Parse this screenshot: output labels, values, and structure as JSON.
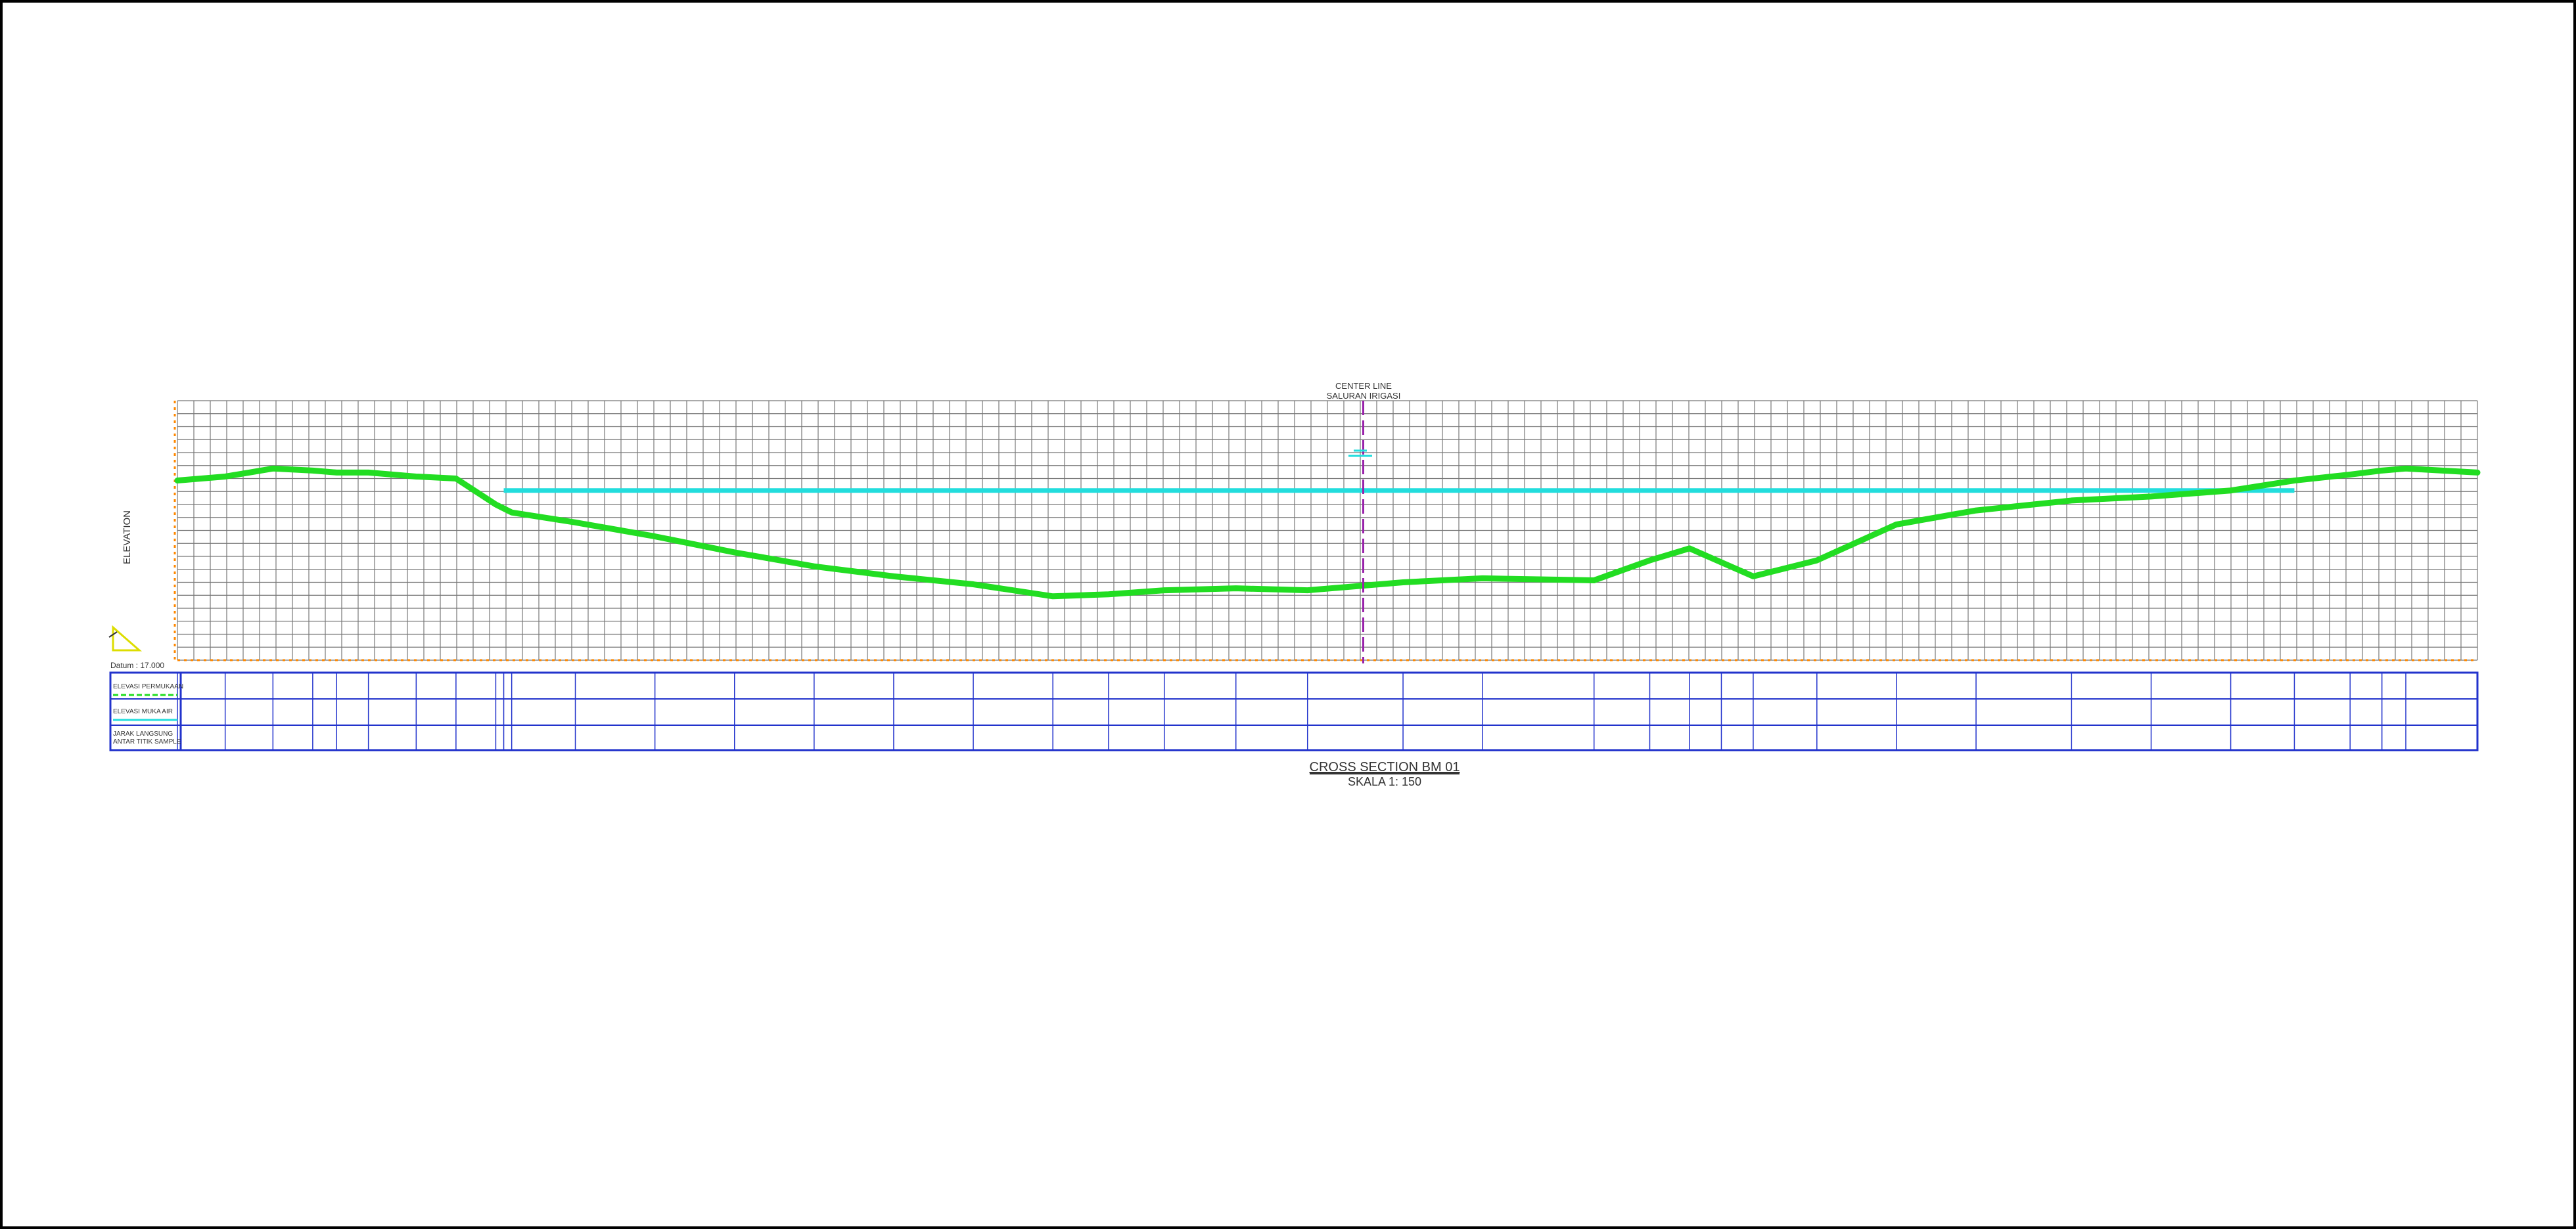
{
  "drawing": {
    "centerline_label_1": "CENTER LINE",
    "centerline_label_2": "SALURAN IRIGASI",
    "y_axis_label": "ELEVATION",
    "datum_label": "Datum : 17.000",
    "title": "CROSS SECTION BM 01",
    "subtitle": "SKALA 1: 150"
  },
  "table": {
    "row_labels": [
      "ELEVASI PERMUKAAN",
      "ELEVASI MUKA AIR",
      "JARAK LANGSUNG",
      "ANTAR TITIK SAMPLE"
    ]
  },
  "colors": {
    "ground": "#22dd22",
    "water": "#22dddd",
    "grid": "#777777",
    "axis": "#ff8800",
    "table": "#2233cc",
    "centerline": "#9922aa",
    "frame": "#000000"
  },
  "chart_data": {
    "type": "line",
    "ylabel": "ELEVATION",
    "series": [
      {
        "name": "ELEVASI PERMUKAAN",
        "x": [
          0,
          3.0,
          6.0,
          8.5,
          10.0,
          12.0,
          15.0,
          17.5,
          20.0,
          20.5,
          21.0,
          25.0,
          30.0,
          35.0,
          40.0,
          45.0,
          50.0,
          55.0,
          58.5,
          62.0,
          66.5,
          71.0,
          77.0,
          82.0,
          89.0,
          92.5,
          95.0,
          97.0,
          99.0,
          103.0,
          108.0,
          113.0,
          119.0,
          124.0,
          129.0,
          133.0,
          136.5,
          138.5,
          140.0,
          144.5
        ],
        "y": [
          26.0,
          26.2,
          26.6,
          26.5,
          26.4,
          26.4,
          26.2,
          26.1,
          24.8,
          24.6,
          24.4,
          23.9,
          23.2,
          22.4,
          21.7,
          21.2,
          20.8,
          20.2,
          20.3,
          20.5,
          20.6,
          20.5,
          20.9,
          21.1,
          21.0,
          22.0,
          22.6,
          21.9,
          21.2,
          22.0,
          23.8,
          24.5,
          25.0,
          25.2,
          25.5,
          26.0,
          26.3,
          26.5,
          26.6,
          26.4
        ]
      },
      {
        "name": "ELEVASI MUKA AIR",
        "x": [
          20.5,
          133.0
        ],
        "y": [
          25.5,
          25.5
        ]
      }
    ],
    "ylim": [
      17.0,
      30.0
    ],
    "xlim": [
      0,
      144.5
    ],
    "centerline_x": 74.5,
    "grid": true
  }
}
